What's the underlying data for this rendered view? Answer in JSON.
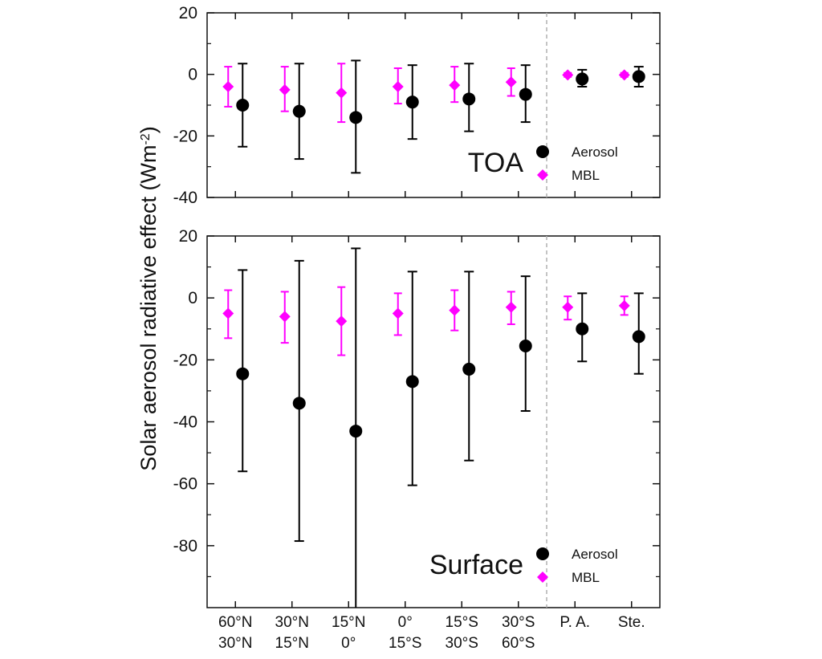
{
  "chart_data": {
    "type": "scatter",
    "ylabel": "Solar aerosol radiative effect (Wm",
    "ylabel_sup": "-2",
    "categories": [
      {
        "line1": "60°N",
        "line2": "30°N"
      },
      {
        "line1": "30°N",
        "line2": "15°N"
      },
      {
        "line1": "15°N",
        "line2": "0°"
      },
      {
        "line1": "0°",
        "line2": "15°S"
      },
      {
        "line1": "15°S",
        "line2": "30°S"
      },
      {
        "line1": "30°S",
        "line2": "60°S"
      },
      {
        "line1": "P. A.",
        "line2": ""
      },
      {
        "line1": "Ste.",
        "line2": ""
      }
    ],
    "colors": {
      "aerosol": "#000000",
      "mbl": "#ff00ff",
      "divider": "#b0b0b0"
    },
    "panels": [
      {
        "label": "TOA",
        "ylim": [
          -40,
          20
        ],
        "yticks": [
          20,
          0,
          -20,
          -40
        ],
        "legend_placement": "bottom-right",
        "series": [
          {
            "name": "Aerosol",
            "marker": "circle",
            "values": [
              -10,
              -12,
              -14,
              -9,
              -8,
              -6.5,
              -1.5,
              -0.7
            ],
            "err_low": [
              -23.5,
              -27.5,
              -32,
              -21,
              -18.5,
              -15.5,
              -4,
              -4
            ],
            "err_high": [
              3.5,
              3.5,
              4.5,
              3,
              3.5,
              3,
              1.5,
              2.5
            ]
          },
          {
            "name": "MBL",
            "marker": "diamond",
            "values": [
              -4,
              -5,
              -6,
              -4,
              -3.5,
              -2.5,
              -0.2,
              -0.2
            ],
            "err_low": [
              -10.5,
              -12,
              -15.5,
              -9.5,
              -9,
              -7,
              -0.8,
              -0.8
            ],
            "err_high": [
              2.5,
              2.5,
              3.5,
              2,
              2.5,
              2,
              0.5,
              0.5
            ]
          }
        ]
      },
      {
        "label": "Surface",
        "ylim": [
          -100,
          20
        ],
        "yticks": [
          20,
          0,
          -20,
          -40,
          -60,
          -80
        ],
        "legend_placement": "bottom-right",
        "series": [
          {
            "name": "Aerosol",
            "marker": "circle",
            "values": [
              -24.5,
              -34,
              -43,
              -27,
              -23,
              -15.5,
              -10,
              -12.5
            ],
            "err_low": [
              -56,
              -78.5,
              -100,
              -60.5,
              -52.5,
              -36.5,
              -20.5,
              -24.5
            ],
            "err_high": [
              9,
              12,
              16,
              8.5,
              8.5,
              7,
              1.5,
              1.5
            ]
          },
          {
            "name": "MBL",
            "marker": "diamond",
            "values": [
              -5,
              -6,
              -7.5,
              -5,
              -4,
              -3,
              -3,
              -2.5
            ],
            "err_low": [
              -13,
              -14.5,
              -18.5,
              -12,
              -10.5,
              -8.5,
              -7,
              -5.5
            ],
            "err_high": [
              2.5,
              2,
              3.5,
              1.5,
              2.5,
              2,
              0.5,
              0.5
            ]
          }
        ]
      }
    ]
  }
}
